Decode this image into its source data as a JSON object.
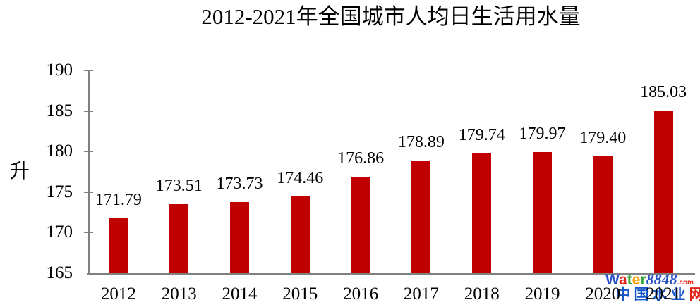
{
  "chart_data": {
    "type": "bar",
    "title": "2012-2021年全国城市人均日生活用水量",
    "xlabel": "",
    "ylabel": "升",
    "categories": [
      "2012",
      "2013",
      "2014",
      "2015",
      "2016",
      "2017",
      "2018",
      "2019",
      "2020",
      "2021"
    ],
    "values": [
      171.79,
      173.51,
      173.73,
      174.46,
      176.86,
      178.89,
      179.74,
      179.97,
      179.4,
      185.03
    ],
    "value_labels": [
      "171.79",
      "173.51",
      "173.73",
      "174.46",
      "176.86",
      "178.89",
      "179.74",
      "179.97",
      "179.40",
      "185.03"
    ],
    "ylim": [
      165,
      190
    ],
    "yticks": [
      165,
      170,
      175,
      180,
      185,
      190
    ],
    "grid": "off",
    "legend": "none",
    "bar_color": "#c00000",
    "axis_color": "#808080",
    "text_color": "#000000"
  },
  "watermark": {
    "brand_letters": [
      {
        "ch": "W",
        "color": "#2953c5"
      },
      {
        "ch": "a",
        "color": "#e0281e"
      },
      {
        "ch": "t",
        "color": "#37a437"
      },
      {
        "ch": "e",
        "color": "#f59b00"
      },
      {
        "ch": "r",
        "color": "#37a437"
      }
    ],
    "brand_number": "8848",
    "brand_number_color": "#2953c5",
    "brand_suffix": ".com",
    "brand_suffix_color": "#e0281e",
    "cn_chars": [
      {
        "ch": "中",
        "color": "#1656c8"
      },
      {
        "ch": "国",
        "color": "#1656c8"
      },
      {
        "ch": "水",
        "color": "#1656c8"
      },
      {
        "ch": "业",
        "color": "#1656c8"
      },
      {
        "ch": "网",
        "color": "#e2231a"
      }
    ]
  }
}
